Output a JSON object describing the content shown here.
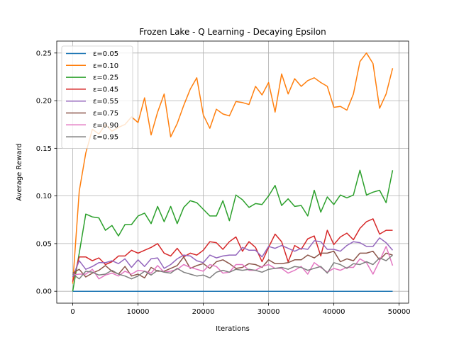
{
  "chart_data": {
    "type": "line",
    "title": "Frozen Lake - Q Learning - Decaying Epsilon",
    "xlabel": "Iterations",
    "ylabel": "Average Reward",
    "xlim": [
      -2450,
      51450
    ],
    "ylim": [
      -0.0125,
      0.2625
    ],
    "xticks": [
      0,
      10000,
      20000,
      30000,
      40000,
      50000
    ],
    "xtick_labels": [
      "0",
      "10000",
      "20000",
      "30000",
      "40000",
      "50000"
    ],
    "yticks": [
      0.0,
      0.05,
      0.1,
      0.15,
      0.2,
      0.25
    ],
    "ytick_labels": [
      "0.00",
      "0.05",
      "0.10",
      "0.15",
      "0.20",
      "0.25"
    ],
    "grid": true,
    "legend_position": "upper-left",
    "x": [
      0,
      1000,
      2000,
      3000,
      4000,
      5000,
      6000,
      7000,
      8000,
      9000,
      10000,
      11000,
      12000,
      13000,
      14000,
      15000,
      16000,
      17000,
      18000,
      19000,
      20000,
      21000,
      22000,
      23000,
      24000,
      25000,
      26000,
      27000,
      28000,
      29000,
      30000,
      31000,
      32000,
      33000,
      34000,
      35000,
      36000,
      37000,
      38000,
      39000,
      40000,
      41000,
      42000,
      43000,
      44000,
      45000,
      46000,
      47000,
      48000,
      49000
    ],
    "series": [
      {
        "name": "ε=0.05",
        "color": "#1f77b4",
        "values": [
          0.0,
          0.0,
          0.0,
          0.0,
          0.0,
          0.0,
          0.0,
          0.0,
          0.0,
          0.0,
          0.0,
          0.0,
          0.0,
          0.0,
          0.0,
          0.0,
          0.0,
          0.0,
          0.0,
          0.0,
          0.0,
          0.0,
          0.0,
          0.0,
          0.0,
          0.0,
          0.0,
          0.0,
          0.0,
          0.0,
          0.0,
          0.0,
          0.0,
          0.0,
          0.0,
          0.0,
          0.0,
          0.0,
          0.0,
          0.0,
          0.0,
          0.0,
          0.0,
          0.0,
          0.0,
          0.0,
          0.0,
          0.0,
          0.0,
          0.0
        ]
      },
      {
        "name": "ε=0.10",
        "color": "#ff7f0e",
        "values": [
          0.008,
          0.105,
          0.145,
          0.17,
          0.165,
          0.175,
          0.168,
          0.172,
          0.175,
          0.183,
          0.177,
          0.203,
          0.164,
          0.188,
          0.207,
          0.162,
          0.176,
          0.195,
          0.212,
          0.224,
          0.185,
          0.171,
          0.191,
          0.186,
          0.184,
          0.199,
          0.198,
          0.196,
          0.215,
          0.206,
          0.219,
          0.188,
          0.228,
          0.207,
          0.223,
          0.215,
          0.221,
          0.224,
          0.219,
          0.215,
          0.193,
          0.194,
          0.19,
          0.207,
          0.241,
          0.25,
          0.239,
          0.192,
          0.207,
          0.234
        ]
      },
      {
        "name": "ε=0.25",
        "color": "#2ca02c",
        "values": [
          0.0,
          0.04,
          0.081,
          0.078,
          0.077,
          0.064,
          0.069,
          0.058,
          0.07,
          0.07,
          0.079,
          0.082,
          0.071,
          0.089,
          0.073,
          0.089,
          0.071,
          0.088,
          0.095,
          0.093,
          0.086,
          0.079,
          0.079,
          0.095,
          0.074,
          0.101,
          0.096,
          0.088,
          0.092,
          0.091,
          0.1,
          0.111,
          0.09,
          0.097,
          0.089,
          0.09,
          0.079,
          0.106,
          0.083,
          0.099,
          0.091,
          0.101,
          0.098,
          0.101,
          0.127,
          0.101,
          0.104,
          0.106,
          0.093,
          0.127
        ]
      },
      {
        "name": "ε=0.45",
        "color": "#d62728",
        "values": [
          0.01,
          0.036,
          0.036,
          0.032,
          0.035,
          0.028,
          0.031,
          0.037,
          0.037,
          0.043,
          0.04,
          0.043,
          0.046,
          0.05,
          0.04,
          0.037,
          0.045,
          0.036,
          0.04,
          0.038,
          0.043,
          0.052,
          0.051,
          0.044,
          0.052,
          0.057,
          0.042,
          0.052,
          0.046,
          0.031,
          0.046,
          0.06,
          0.052,
          0.031,
          0.048,
          0.044,
          0.055,
          0.058,
          0.037,
          0.064,
          0.049,
          0.057,
          0.061,
          0.054,
          0.066,
          0.073,
          0.076,
          0.06,
          0.064,
          0.064
        ]
      },
      {
        "name": "ε=0.55",
        "color": "#9467bd",
        "values": [
          0.015,
          0.032,
          0.023,
          0.026,
          0.03,
          0.03,
          0.032,
          0.029,
          0.034,
          0.025,
          0.033,
          0.026,
          0.034,
          0.035,
          0.024,
          0.028,
          0.034,
          0.038,
          0.037,
          0.032,
          0.03,
          0.038,
          0.035,
          0.037,
          0.038,
          0.038,
          0.046,
          0.043,
          0.043,
          0.036,
          0.047,
          0.045,
          0.048,
          0.045,
          0.042,
          0.045,
          0.044,
          0.053,
          0.052,
          0.044,
          0.044,
          0.042,
          0.048,
          0.052,
          0.051,
          0.047,
          0.047,
          0.056,
          0.051,
          0.043
        ]
      },
      {
        "name": "ε=0.75",
        "color": "#8c564b",
        "values": [
          0.019,
          0.023,
          0.015,
          0.019,
          0.022,
          0.027,
          0.021,
          0.018,
          0.026,
          0.016,
          0.018,
          0.014,
          0.025,
          0.021,
          0.021,
          0.024,
          0.027,
          0.036,
          0.024,
          0.027,
          0.029,
          0.024,
          0.031,
          0.033,
          0.029,
          0.024,
          0.025,
          0.029,
          0.028,
          0.025,
          0.033,
          0.029,
          0.029,
          0.03,
          0.033,
          0.033,
          0.038,
          0.035,
          0.04,
          0.04,
          0.042,
          0.031,
          0.034,
          0.032,
          0.04,
          0.04,
          0.042,
          0.033,
          0.04,
          0.038
        ]
      },
      {
        "name": "ε=0.90",
        "color": "#e377c2",
        "values": [
          0.017,
          0.018,
          0.018,
          0.023,
          0.013,
          0.017,
          0.019,
          0.016,
          0.021,
          0.018,
          0.022,
          0.021,
          0.019,
          0.027,
          0.02,
          0.021,
          0.023,
          0.028,
          0.025,
          0.023,
          0.021,
          0.028,
          0.026,
          0.019,
          0.02,
          0.028,
          0.028,
          0.022,
          0.022,
          0.026,
          0.028,
          0.024,
          0.024,
          0.019,
          0.022,
          0.026,
          0.018,
          0.03,
          0.025,
          0.02,
          0.024,
          0.022,
          0.025,
          0.025,
          0.034,
          0.03,
          0.018,
          0.032,
          0.047,
          0.027
        ]
      },
      {
        "name": "ε=0.95",
        "color": "#7f7f7f",
        "values": [
          0.018,
          0.013,
          0.021,
          0.02,
          0.017,
          0.018,
          0.022,
          0.018,
          0.016,
          0.013,
          0.016,
          0.021,
          0.017,
          0.022,
          0.02,
          0.019,
          0.024,
          0.02,
          0.018,
          0.016,
          0.017,
          0.014,
          0.02,
          0.022,
          0.02,
          0.023,
          0.022,
          0.023,
          0.022,
          0.02,
          0.023,
          0.024,
          0.025,
          0.023,
          0.026,
          0.025,
          0.022,
          0.024,
          0.026,
          0.019,
          0.03,
          0.028,
          0.024,
          0.029,
          0.028,
          0.031,
          0.028,
          0.035,
          0.032,
          0.038
        ]
      }
    ]
  }
}
